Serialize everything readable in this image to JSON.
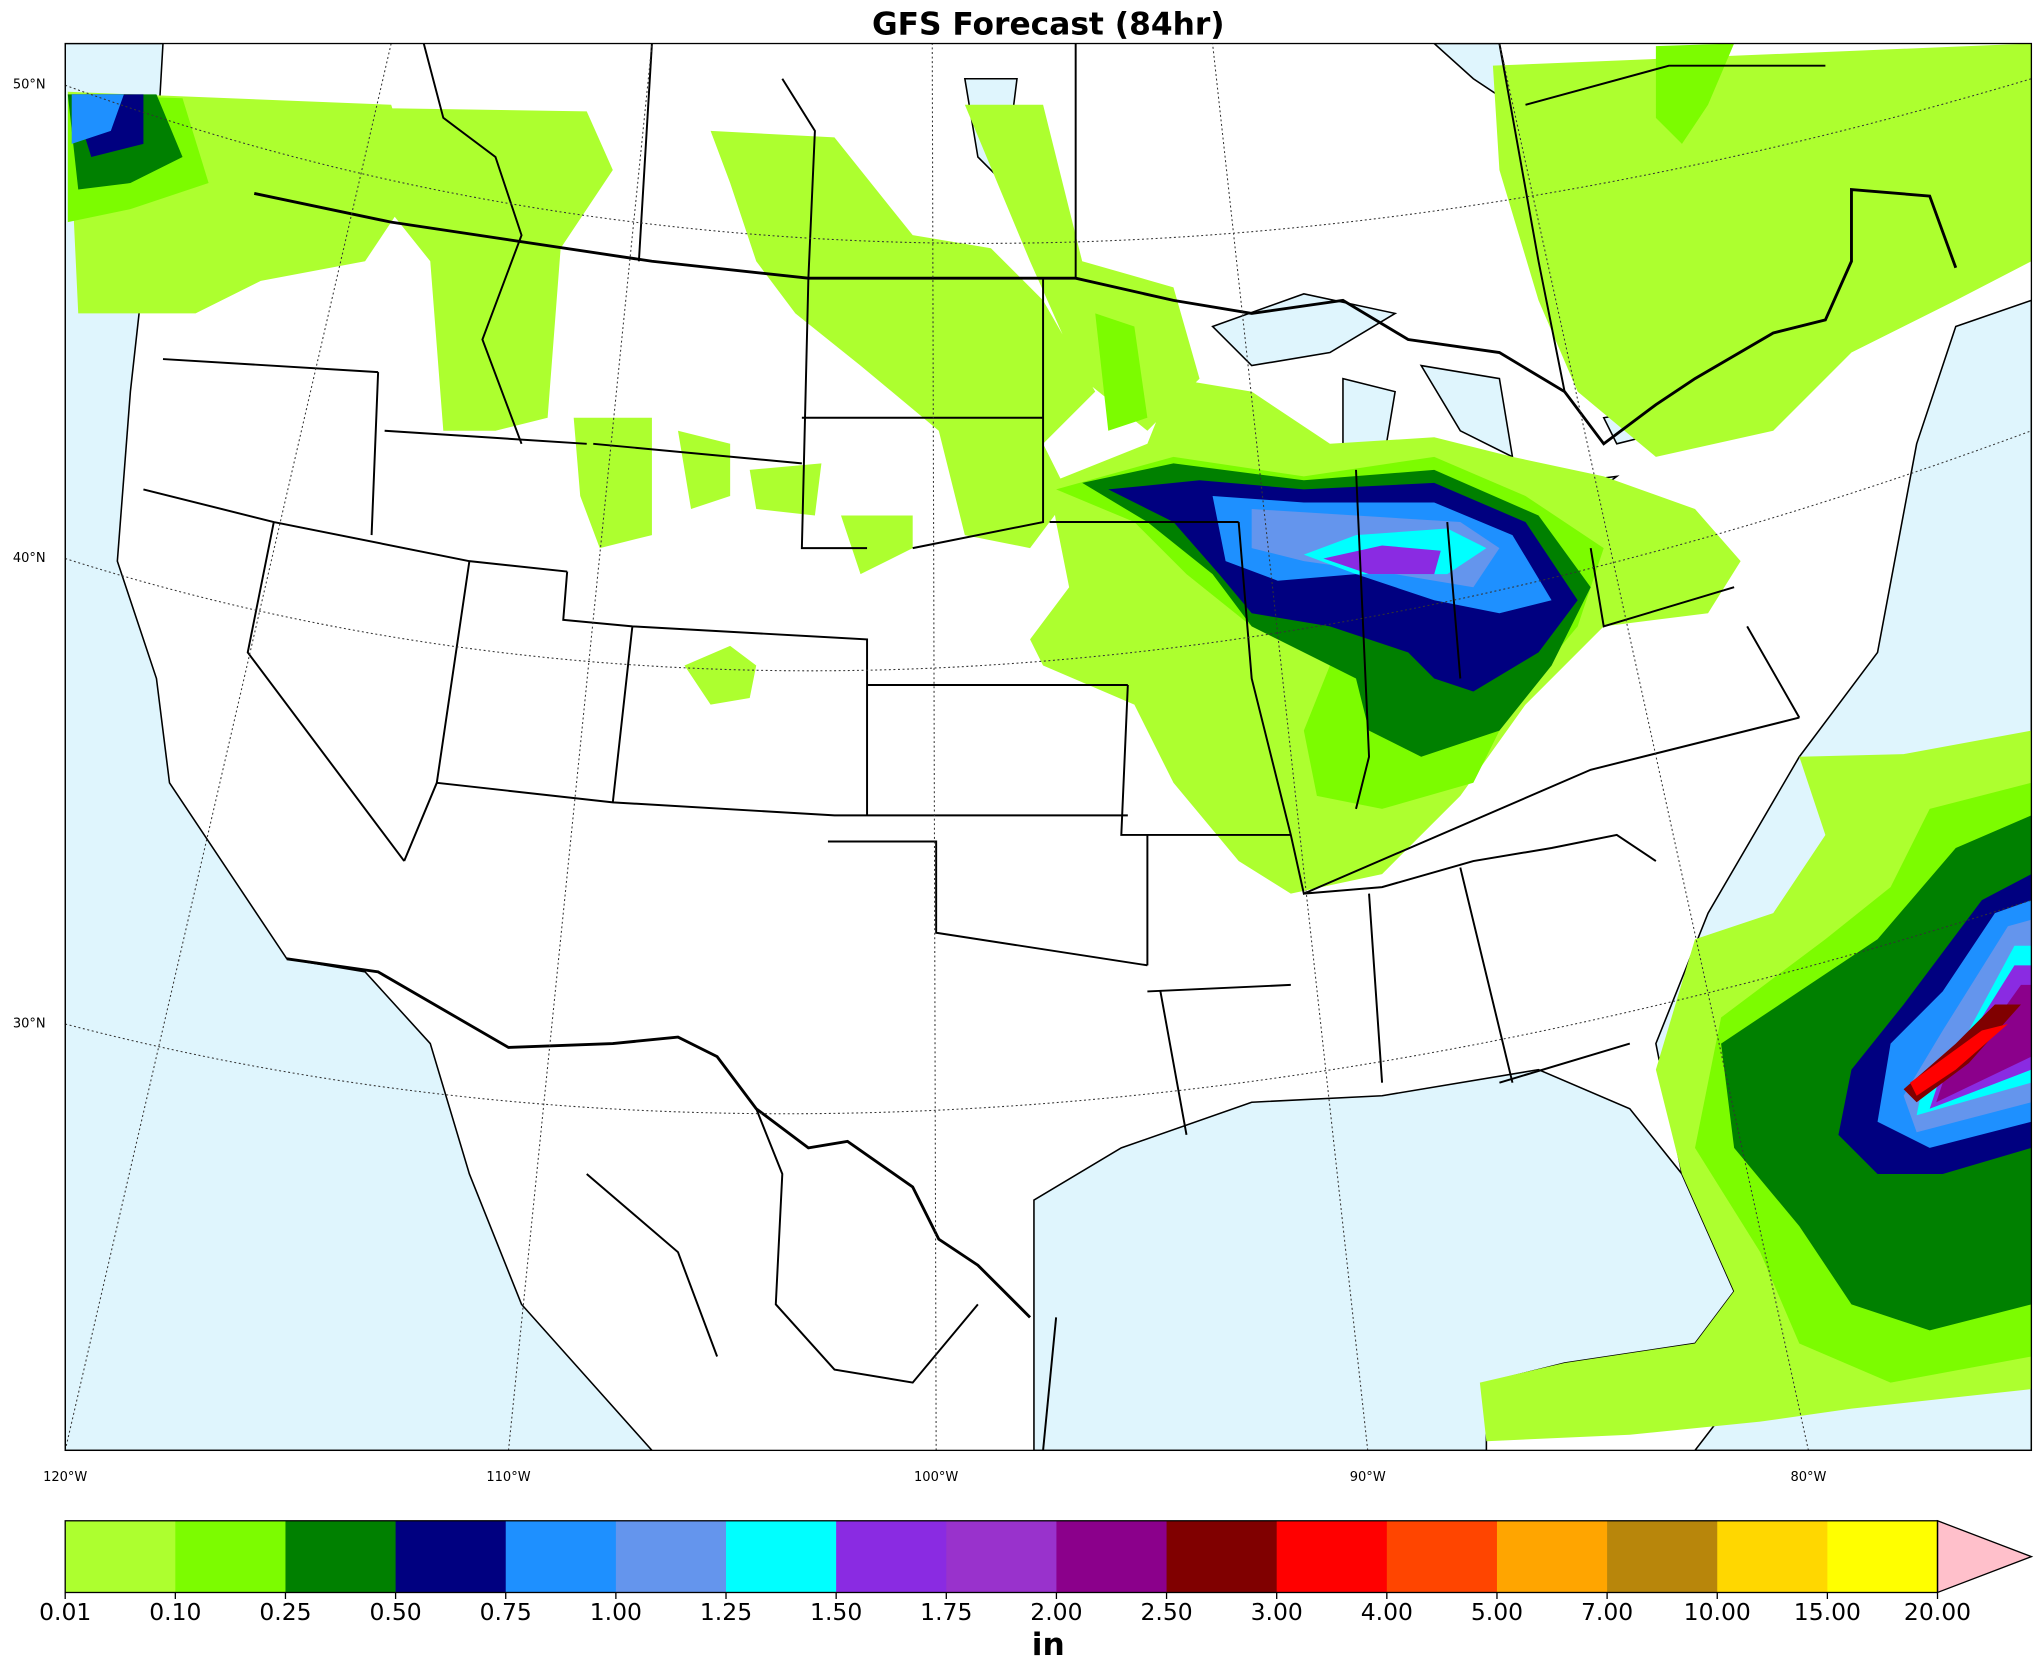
{
  "title": "GFS Forecast (84hr)",
  "map": {
    "lat_labels": [
      "50°N",
      "40°N",
      "30°N"
    ],
    "lon_labels": [
      "120°W",
      "110°W",
      "100°W",
      "90°W",
      "80°W"
    ]
  },
  "colorbar": {
    "levels": [
      {
        "value": 0.01,
        "label": "0.01"
      },
      {
        "value": 0.1,
        "label": "0.10"
      },
      {
        "value": 0.25,
        "label": "0.25"
      },
      {
        "value": 0.5,
        "label": "0.50"
      },
      {
        "value": 0.75,
        "label": "0.75"
      },
      {
        "value": 1,
        "label": "1.00"
      },
      {
        "value": 1.25,
        "label": "1.25"
      },
      {
        "value": 1.5,
        "label": "1.50"
      },
      {
        "value": 1.75,
        "label": "1.75"
      },
      {
        "value": 2,
        "label": "2.00"
      },
      {
        "value": 2.5,
        "label": "2.50"
      },
      {
        "value": 3,
        "label": "3.00"
      },
      {
        "value": 4,
        "label": "4.00"
      },
      {
        "value": 5,
        "label": "5.00"
      },
      {
        "value": 7,
        "label": "7.00"
      },
      {
        "value": 10,
        "label": "10.00"
      },
      {
        "value": 15,
        "label": "15.00"
      },
      {
        "value": 20,
        "label": "20.00"
      }
    ],
    "colors": [
      "#adff2f",
      "#7cfc00",
      "#008000",
      "#000080",
      "#1e90ff",
      "#6495ed",
      "#00ffff",
      "#8a2be2",
      "#9932cc",
      "#8b008b",
      "#800000",
      "#ff0000",
      "#ff4500",
      "#ffa500",
      "#b8860b",
      "#ffd700",
      "#ffff00"
    ],
    "extend_color": "#ffc0cb",
    "unit": "in"
  }
}
